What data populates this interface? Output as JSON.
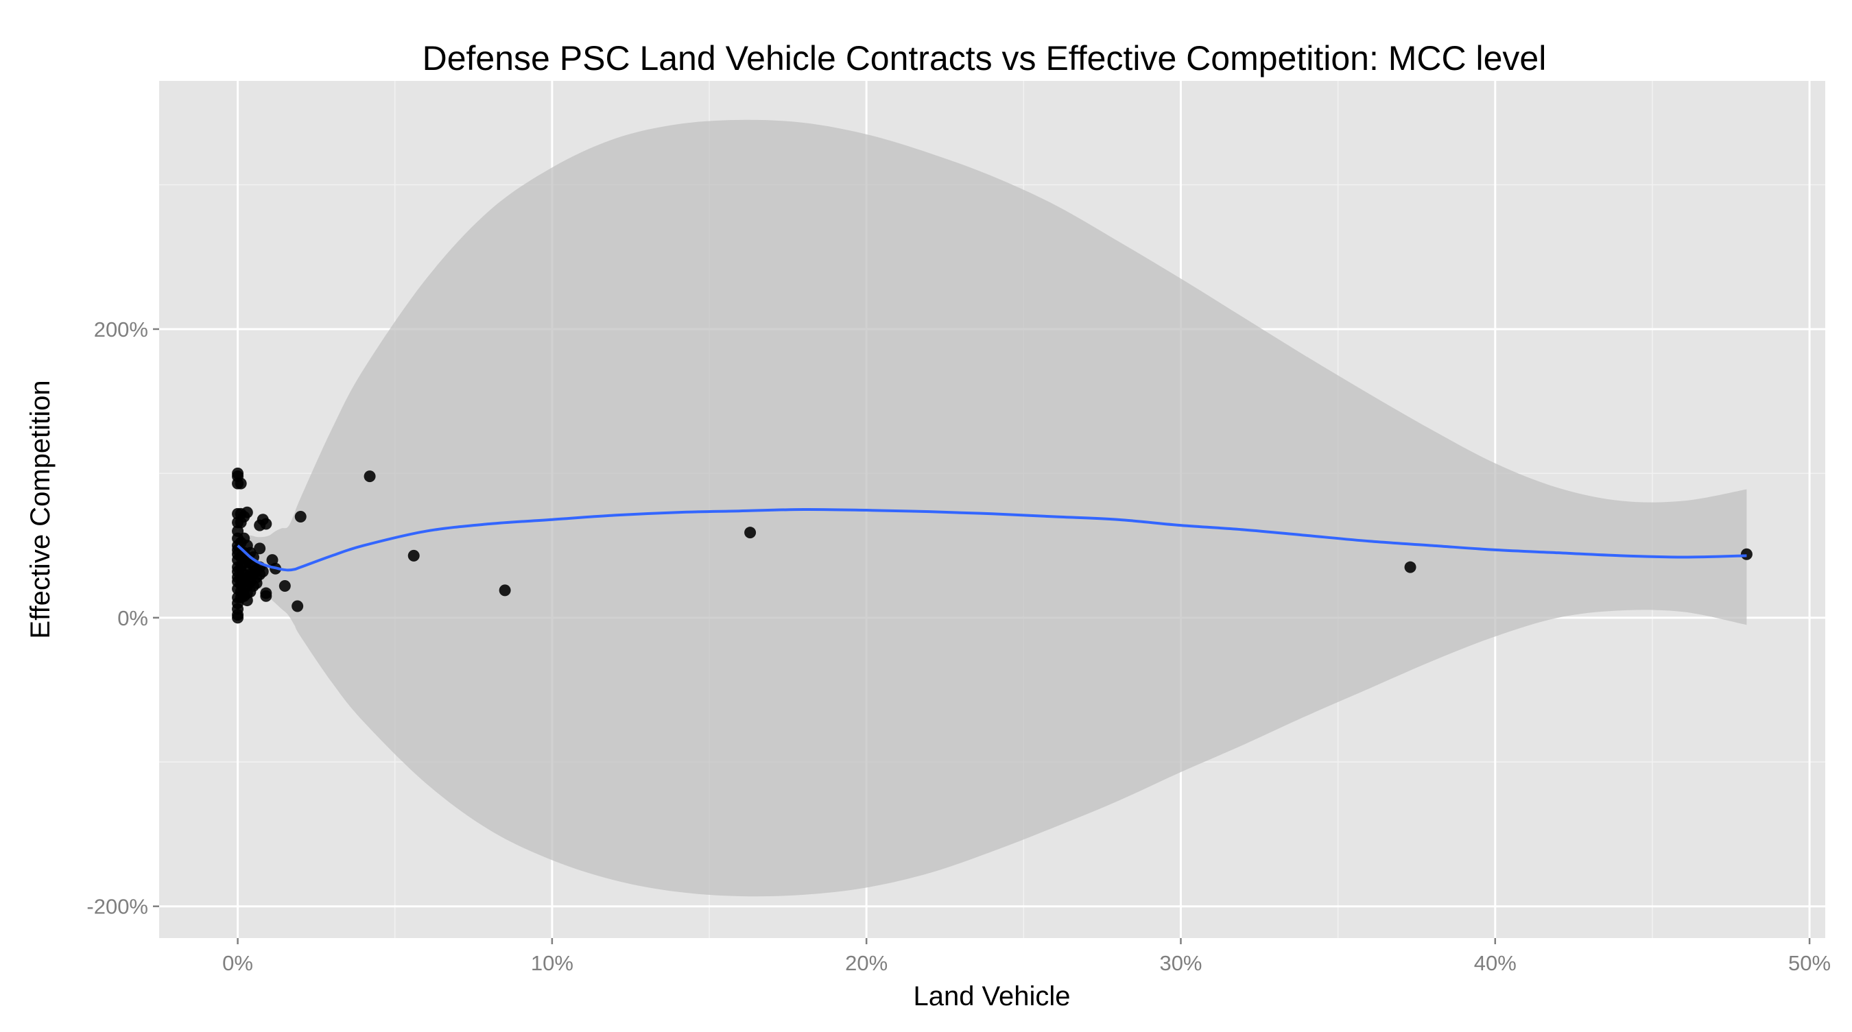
{
  "chart_data": {
    "type": "scatter",
    "title": "Defense PSC Land Vehicle Contracts vs Effective Competition: MCC level",
    "xlabel": "Land Vehicle",
    "ylabel": "Effective Competition",
    "xlim": [
      -0.025,
      0.505
    ],
    "ylim": [
      -2.22,
      3.72
    ],
    "x_ticks": [
      0,
      0.1,
      0.2,
      0.3,
      0.4,
      0.5
    ],
    "x_tick_labels": [
      "0%",
      "10%",
      "20%",
      "30%",
      "40%",
      "50%"
    ],
    "y_ticks": [
      -2,
      0,
      2
    ],
    "y_tick_labels": [
      "-200%",
      "0%",
      "200%"
    ],
    "grid": true,
    "colors": {
      "panel": "#e5e5e5",
      "grid_major": "#ffffff",
      "grid_minor": "#f2f2f2",
      "ribbon": "#bfbfbf",
      "smooth_line": "#3366ff",
      "points": "#000000"
    },
    "points": {
      "x": [
        0.0,
        0.0,
        0.0,
        0.0,
        0.0,
        0.0,
        0.0,
        0.0,
        0.0,
        0.0,
        0.0,
        0.0,
        0.0,
        0.0,
        0.0,
        0.0,
        0.0,
        0.0,
        0.0,
        0.0,
        0.0,
        0.001,
        0.001,
        0.001,
        0.001,
        0.001,
        0.001,
        0.001,
        0.001,
        0.001,
        0.001,
        0.002,
        0.002,
        0.002,
        0.002,
        0.002,
        0.002,
        0.002,
        0.002,
        0.003,
        0.003,
        0.003,
        0.003,
        0.003,
        0.003,
        0.003,
        0.003,
        0.004,
        0.004,
        0.004,
        0.004,
        0.004,
        0.005,
        0.005,
        0.005,
        0.005,
        0.006,
        0.006,
        0.006,
        0.007,
        0.007,
        0.007,
        0.007,
        0.008,
        0.008,
        0.009,
        0.009,
        0.009,
        0.011,
        0.012,
        0.015,
        0.019,
        0.02,
        0.042,
        0.056,
        0.085,
        0.163,
        0.373,
        0.48
      ],
      "y": [
        1.0,
        0.98,
        0.93,
        0.72,
        0.66,
        0.6,
        0.55,
        0.5,
        0.47,
        0.44,
        0.4,
        0.35,
        0.32,
        0.28,
        0.25,
        0.2,
        0.14,
        0.1,
        0.06,
        0.02,
        0.0,
        0.93,
        0.72,
        0.66,
        0.52,
        0.42,
        0.35,
        0.28,
        0.23,
        0.18,
        0.14,
        0.7,
        0.55,
        0.45,
        0.38,
        0.3,
        0.25,
        0.2,
        0.15,
        0.73,
        0.5,
        0.4,
        0.33,
        0.28,
        0.22,
        0.17,
        0.12,
        0.45,
        0.38,
        0.3,
        0.25,
        0.18,
        0.42,
        0.36,
        0.3,
        0.22,
        0.33,
        0.28,
        0.24,
        0.64,
        0.48,
        0.35,
        0.3,
        0.68,
        0.32,
        0.65,
        0.17,
        0.15,
        0.4,
        0.34,
        0.22,
        0.08,
        0.7,
        0.98,
        0.43,
        0.19,
        0.59,
        0.35,
        0.44
      ]
    },
    "smooth": {
      "x": [
        0.0,
        0.002,
        0.004,
        0.006,
        0.008,
        0.01,
        0.012,
        0.014,
        0.016,
        0.018,
        0.02,
        0.03,
        0.04,
        0.06,
        0.08,
        0.1,
        0.12,
        0.14,
        0.16,
        0.18,
        0.2,
        0.22,
        0.24,
        0.26,
        0.28,
        0.3,
        0.32,
        0.34,
        0.36,
        0.38,
        0.4,
        0.42,
        0.44,
        0.46,
        0.48
      ],
      "y": [
        0.5,
        0.46,
        0.42,
        0.39,
        0.37,
        0.355,
        0.345,
        0.335,
        0.33,
        0.335,
        0.35,
        0.43,
        0.5,
        0.6,
        0.65,
        0.68,
        0.71,
        0.73,
        0.74,
        0.75,
        0.745,
        0.735,
        0.72,
        0.7,
        0.68,
        0.64,
        0.61,
        0.57,
        0.53,
        0.5,
        0.47,
        0.45,
        0.43,
        0.42,
        0.43
      ],
      "ymin": [
        0.5,
        0.36,
        0.27,
        0.22,
        0.18,
        0.14,
        0.1,
        0.06,
        0.02,
        -0.05,
        -0.13,
        -0.45,
        -0.72,
        -1.15,
        -1.47,
        -1.68,
        -1.82,
        -1.9,
        -1.93,
        -1.92,
        -1.87,
        -1.77,
        -1.62,
        -1.45,
        -1.27,
        -1.07,
        -0.88,
        -0.68,
        -0.49,
        -0.3,
        -0.13,
        0.0,
        0.05,
        0.04,
        -0.05
      ],
      "ymax": [
        0.5,
        0.56,
        0.57,
        0.56,
        0.56,
        0.57,
        0.6,
        0.62,
        0.63,
        0.72,
        0.83,
        1.31,
        1.72,
        2.35,
        2.82,
        3.12,
        3.32,
        3.42,
        3.45,
        3.43,
        3.35,
        3.22,
        3.06,
        2.86,
        2.61,
        2.35,
        2.08,
        1.81,
        1.55,
        1.3,
        1.07,
        0.9,
        0.81,
        0.81,
        0.89
      ]
    }
  }
}
